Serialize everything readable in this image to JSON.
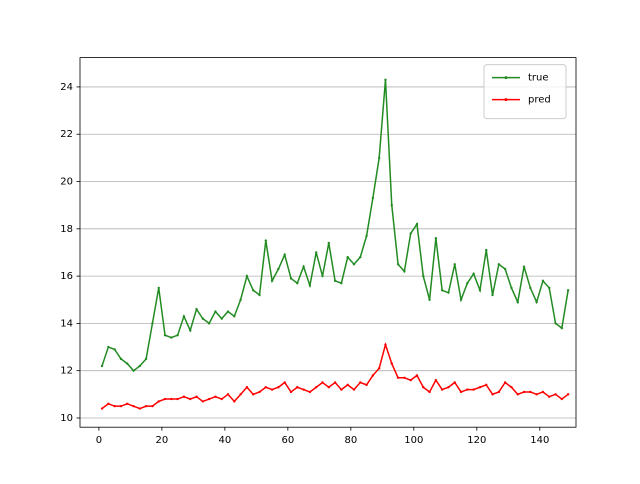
{
  "chart_data": {
    "type": "line",
    "x": [
      1,
      3,
      5,
      7,
      9,
      11,
      13,
      15,
      17,
      19,
      21,
      23,
      25,
      27,
      29,
      31,
      33,
      35,
      37,
      39,
      41,
      43,
      45,
      47,
      49,
      51,
      53,
      55,
      57,
      59,
      61,
      63,
      65,
      67,
      69,
      71,
      73,
      75,
      77,
      79,
      81,
      83,
      85,
      87,
      89,
      91,
      93,
      95,
      97,
      99,
      101,
      103,
      105,
      107,
      109,
      111,
      113,
      115,
      117,
      119,
      121,
      123,
      125,
      127,
      129,
      131,
      133,
      135,
      137,
      139,
      141,
      143,
      145,
      147,
      149
    ],
    "series": [
      {
        "name": "true",
        "color": "#228b22",
        "values": [
          12.2,
          13.0,
          12.9,
          12.5,
          12.3,
          12.0,
          12.2,
          12.5,
          14.0,
          15.5,
          13.5,
          13.4,
          13.5,
          14.3,
          13.7,
          14.6,
          14.2,
          14.0,
          14.5,
          14.2,
          14.5,
          14.3,
          15.0,
          16.0,
          15.4,
          15.2,
          17.5,
          15.8,
          16.3,
          16.9,
          15.9,
          15.7,
          16.4,
          15.6,
          17.0,
          16.0,
          17.4,
          15.8,
          15.7,
          16.8,
          16.5,
          16.8,
          17.7,
          19.3,
          21.0,
          24.3,
          19.0,
          16.5,
          16.2,
          17.8,
          18.2,
          16.0,
          15.0,
          17.6,
          15.4,
          15.3,
          16.5,
          15.0,
          15.7,
          16.1,
          15.4,
          17.1,
          15.2,
          16.5,
          16.3,
          15.5,
          14.9,
          16.4,
          15.5,
          14.9,
          15.8,
          15.5,
          14.0,
          13.8,
          15.4
        ]
      },
      {
        "name": "pred",
        "color": "#ff0000",
        "values": [
          10.4,
          10.6,
          10.5,
          10.5,
          10.6,
          10.5,
          10.4,
          10.5,
          10.5,
          10.7,
          10.8,
          10.8,
          10.8,
          10.9,
          10.8,
          10.9,
          10.7,
          10.8,
          10.9,
          10.8,
          11.0,
          10.7,
          11.0,
          11.3,
          11.0,
          11.1,
          11.3,
          11.2,
          11.3,
          11.5,
          11.1,
          11.3,
          11.2,
          11.1,
          11.3,
          11.5,
          11.3,
          11.5,
          11.2,
          11.4,
          11.2,
          11.5,
          11.4,
          11.8,
          12.1,
          13.1,
          12.3,
          11.7,
          11.7,
          11.6,
          11.8,
          11.3,
          11.1,
          11.6,
          11.2,
          11.3,
          11.5,
          11.1,
          11.2,
          11.2,
          11.3,
          11.4,
          11.0,
          11.1,
          11.5,
          11.3,
          11.0,
          11.1,
          11.1,
          11.0,
          11.1,
          10.9,
          11.0,
          10.8,
          11.0
        ]
      }
    ],
    "xlim": [
      -6,
      151.5
    ],
    "xticks": [
      0,
      20,
      40,
      60,
      80,
      100,
      120,
      140
    ],
    "ylim": [
      9.61,
      25.24
    ],
    "yticks": [
      10,
      12,
      14,
      16,
      18,
      20,
      22,
      24
    ],
    "grid": "y",
    "legend": "upper right"
  }
}
